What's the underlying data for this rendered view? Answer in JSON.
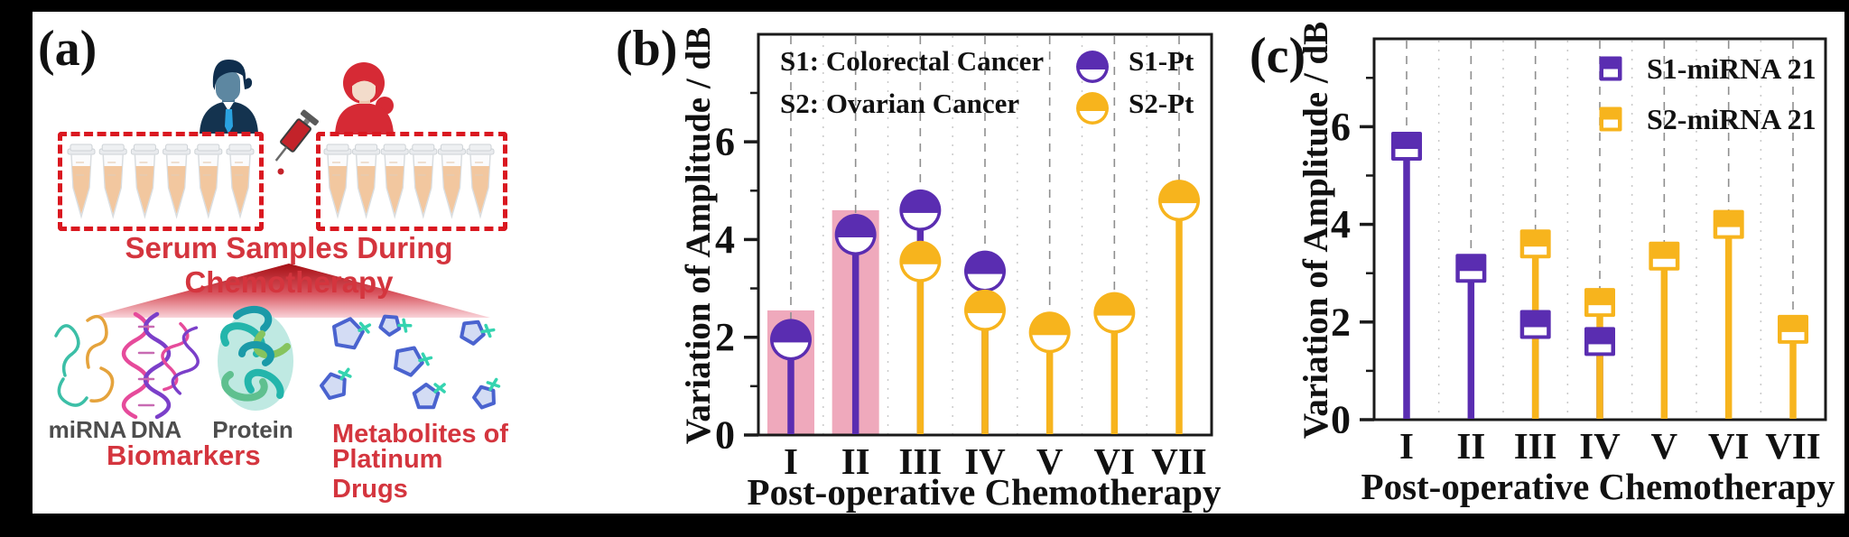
{
  "panel_a": {
    "label": "(a)",
    "caption": "Serum Samples During Chemotherapy",
    "tubes_per_box": 6,
    "box_count": 2,
    "item_labels": [
      "miRNA",
      "DNA",
      "Protein"
    ],
    "biomarkers_label": "Biomarkers",
    "metabolites_label_line1": "Metabolites of",
    "metabolites_label_line2": "Platinum Drugs",
    "colors": {
      "red_text": "#d4353e",
      "dotted_box_red": "#da1820",
      "label_gray": "#4d4d4d"
    }
  },
  "chart_data": [
    {
      "panel_label": "(b)",
      "type": "scatter",
      "style": "lollipop-stem",
      "marker": "circle-half-filled",
      "xlabel": "Post-operative Chemotherapy",
      "ylabel": "Variation of Amplitude / dB",
      "categories": [
        "I",
        "II",
        "III",
        "IV",
        "V",
        "VI",
        "VII"
      ],
      "ylim": [
        0,
        8.2
      ],
      "yticks_major": [
        0,
        2,
        4,
        6
      ],
      "yticks_minor": [
        1,
        3,
        5,
        7
      ],
      "grid": "vertical-dashed-on",
      "legend_position": "top-inside",
      "legend_notes": [
        "S1: Colorectal Cancer",
        "S2: Ovarian Cancer"
      ],
      "series": [
        {
          "name": "S1-Pt",
          "color": "#5a2db1",
          "values": [
            1.95,
            4.1,
            4.6,
            3.35,
            null,
            null,
            null
          ]
        },
        {
          "name": "S2-Pt",
          "color": "#f7b41d",
          "values": [
            null,
            null,
            3.55,
            2.55,
            2.1,
            2.5,
            4.8
          ]
        }
      ],
      "highlight_bars": {
        "color": "#efa9bc",
        "bars": [
          {
            "category": "I",
            "top": 2.55
          },
          {
            "category": "II",
            "top": 4.6
          }
        ]
      }
    },
    {
      "panel_label": "(c)",
      "type": "scatter",
      "style": "lollipop-stem",
      "marker": "square-half-filled",
      "xlabel": "Post-operative Chemotherapy",
      "ylabel": "Variation of Amplitude / dB",
      "categories": [
        "I",
        "II",
        "III",
        "IV",
        "V",
        "VI",
        "VII"
      ],
      "ylim": [
        0,
        7.8
      ],
      "yticks_major": [
        0,
        2,
        4,
        6
      ],
      "yticks_minor": [
        1,
        3,
        5,
        7
      ],
      "grid": "vertical-dashed-on",
      "legend_position": "top-right-inside",
      "series": [
        {
          "name": "S1-miRNA 21",
          "color": "#5a2db1",
          "values": [
            5.6,
            3.1,
            1.95,
            1.6,
            null,
            null,
            null
          ]
        },
        {
          "name": "S2-miRNA 21",
          "color": "#f7b41d",
          "values": [
            null,
            null,
            3.6,
            2.4,
            3.35,
            4.0,
            1.85
          ]
        }
      ]
    }
  ]
}
